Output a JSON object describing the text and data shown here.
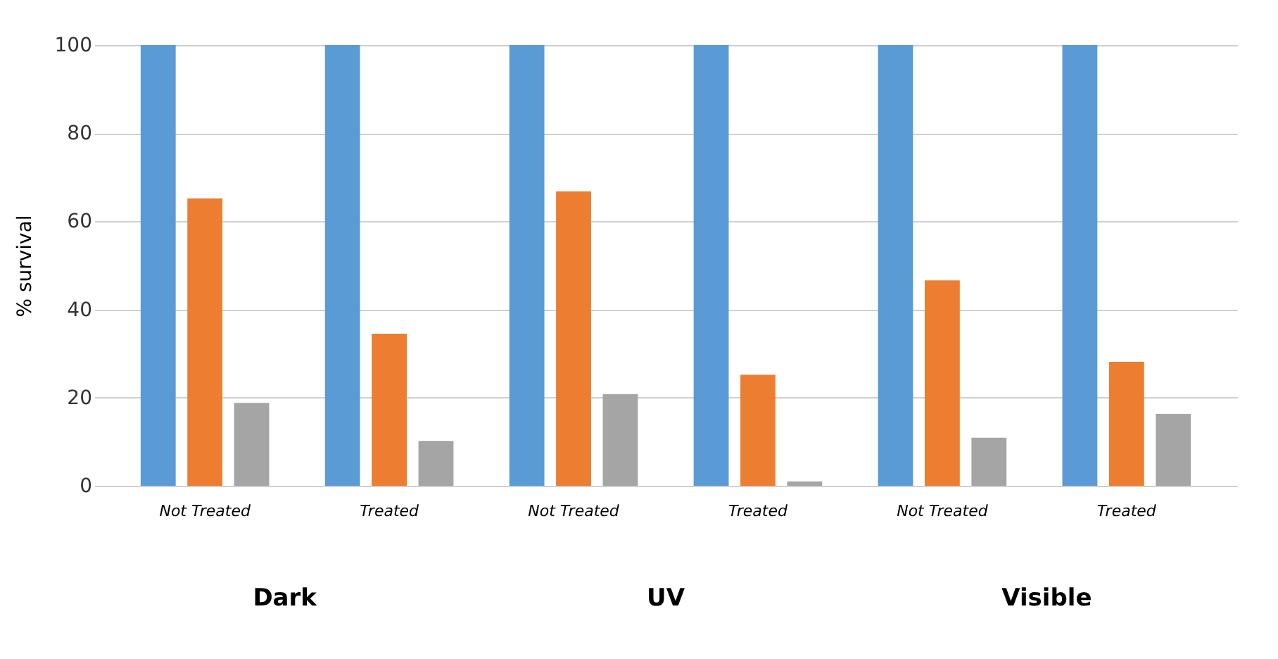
{
  "chart_data": {
    "type": "bar",
    "ylabel": "% survival",
    "categories": [
      "Not Treated",
      "Treated",
      "Not Treated",
      "Treated",
      "Not Treated",
      "Treated"
    ],
    "series": [
      {
        "color": "#5b9bd5",
        "values": [
          100,
          100,
          100,
          100,
          100,
          100
        ]
      },
      {
        "color": "#ed7d31",
        "values": [
          65.2,
          34.5,
          66.8,
          25.2,
          46.6,
          28.1
        ]
      },
      {
        "color": "#a5a5a5",
        "values": [
          18.8,
          10.2,
          20.8,
          1,
          10.9,
          16.3
        ]
      }
    ],
    "ylim": [
      0,
      100
    ],
    "yticks": [
      0,
      20,
      40,
      60,
      80,
      100
    ],
    "grid": "y",
    "legend": false,
    "annotations": [
      "Dark",
      "UV",
      "Visible"
    ]
  }
}
